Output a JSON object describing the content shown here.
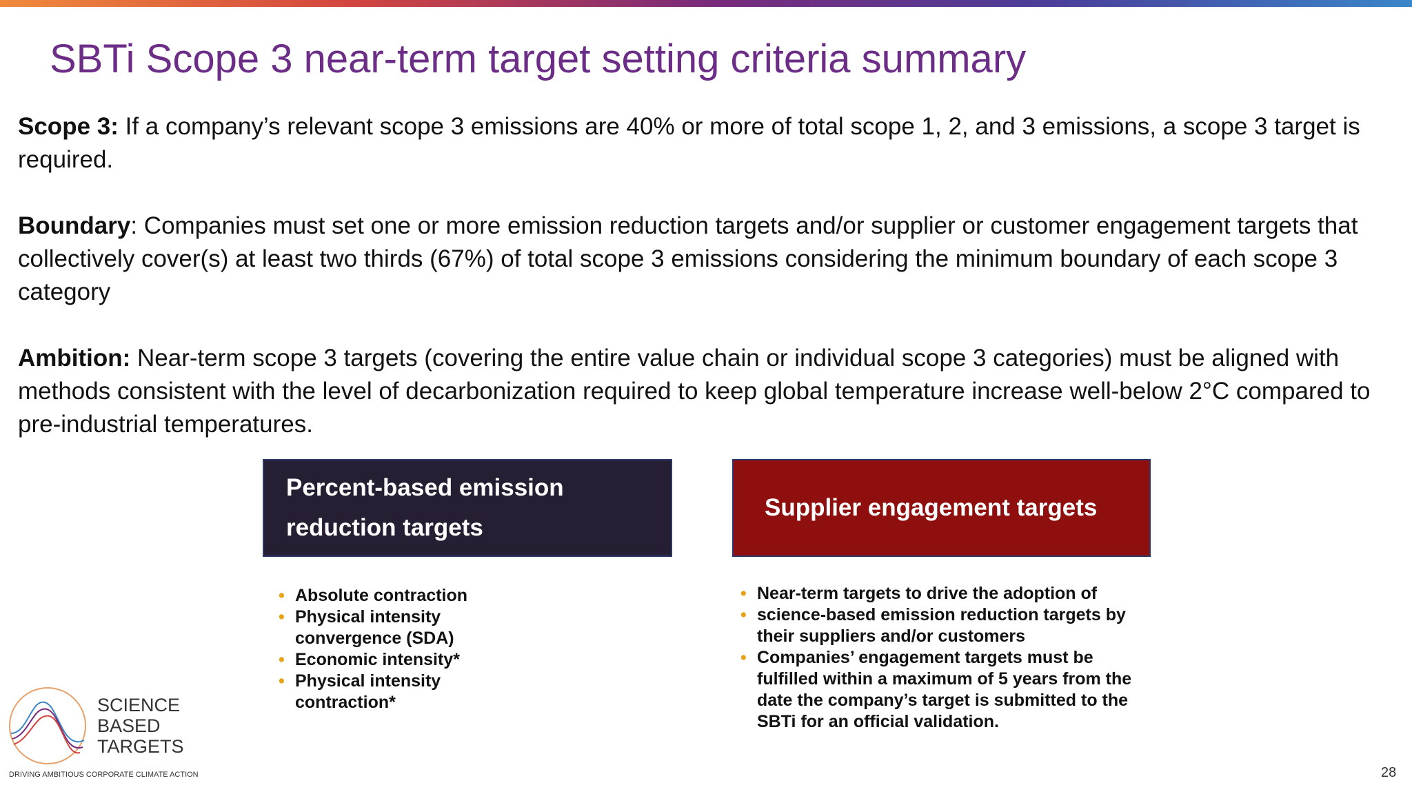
{
  "header": {
    "title": "SBTi Scope 3 near-term target setting criteria summary"
  },
  "paragraphs": [
    {
      "label": "Scope 3:",
      "text": " If a company’s relevant scope 3 emissions are 40% or more of total scope 1, 2, and 3 emissions, a scope 3 target is required."
    },
    {
      "label": "Boundary",
      "text": ": Companies must set one or more emission reduction targets and/or supplier or customer engagement targets that collectively cover(s) at least two thirds (67%) of total scope 3 emissions considering the minimum boundary of each scope 3 category"
    },
    {
      "label": "Ambition:",
      "text": " Near-term scope 3 targets (covering the entire value chain or individual scope 3 categories) must be aligned with methods consistent with the level of decarbonization required to keep global temperature increase well-below 2°C compared to pre-industrial temperatures."
    }
  ],
  "boxes": [
    {
      "title": "Percent-based emission reduction targets",
      "bullets": [
        "Absolute contraction",
        "Physical intensity convergence (SDA)",
        "Economic intensity*",
        "Physical intensity contraction*"
      ]
    },
    {
      "title": "Supplier engagement targets",
      "bullets": [
        "Near-term targets to drive the adoption of",
        "science-based emission reduction targets by their suppliers and/or customers",
        "Companies’ engagement targets must be fulfilled within a maximum of 5 years from the date the company’s target is submitted to the SBTi for an official validation."
      ]
    }
  ],
  "logo": {
    "lines": [
      "SCIENCE",
      "BASED",
      "TARGETS"
    ],
    "tagline": "DRIVING AMBITIOUS CORPORATE CLIMATE ACTION"
  },
  "page_number": "28"
}
